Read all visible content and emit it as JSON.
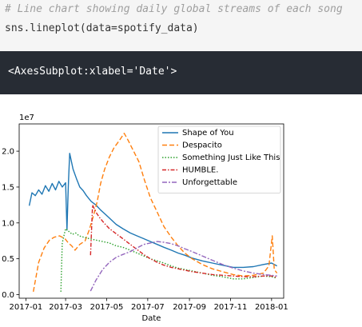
{
  "code_cell": {
    "comment": "# Line chart showing daily global streams of each song",
    "code": "sns.lineplot(data=spotify_data)"
  },
  "output_cell": {
    "text": "<AxesSubplot:xlabel='Date'>"
  },
  "colors": {
    "code_bg": "#f5f5f5",
    "output_bg": "#272c34"
  },
  "chart_data": {
    "type": "line",
    "xlabel": "Date",
    "ylabel": "",
    "offset_label": "1e7",
    "x_ticks": [
      "2017-01",
      "2017-03",
      "2017-05",
      "2017-07",
      "2017-09",
      "2017-11",
      "2018-01"
    ],
    "y_ticks": [
      "0.0",
      "0.5",
      "1.0",
      "1.5",
      "2.0"
    ],
    "ylim": [
      -0.05,
      2.38
    ],
    "xlim": [
      "2016-12-22",
      "2018-01-19"
    ],
    "legend_position": "upper right",
    "grid": false,
    "series": [
      {
        "name": "Shape of You",
        "color": "#1f77b4",
        "dash": "solid",
        "points": [
          [
            "2017-01-06",
            1.24
          ],
          [
            "2017-01-10",
            1.42
          ],
          [
            "2017-01-15",
            1.38
          ],
          [
            "2017-01-20",
            1.46
          ],
          [
            "2017-01-25",
            1.4
          ],
          [
            "2017-01-30",
            1.52
          ],
          [
            "2017-02-04",
            1.44
          ],
          [
            "2017-02-09",
            1.55
          ],
          [
            "2017-02-14",
            1.46
          ],
          [
            "2017-02-19",
            1.58
          ],
          [
            "2017-02-24",
            1.5
          ],
          [
            "2017-03-01",
            1.56
          ],
          [
            "2017-03-03",
            0.9
          ],
          [
            "2017-03-05",
            1.52
          ],
          [
            "2017-03-07",
            1.97
          ],
          [
            "2017-03-12",
            1.75
          ],
          [
            "2017-03-17",
            1.62
          ],
          [
            "2017-03-22",
            1.5
          ],
          [
            "2017-03-27",
            1.45
          ],
          [
            "2017-04-01",
            1.38
          ],
          [
            "2017-04-08",
            1.3
          ],
          [
            "2017-04-15",
            1.25
          ],
          [
            "2017-04-22",
            1.18
          ],
          [
            "2017-04-29",
            1.12
          ],
          [
            "2017-05-07",
            1.05
          ],
          [
            "2017-05-15",
            0.98
          ],
          [
            "2017-05-25",
            0.92
          ],
          [
            "2017-06-05",
            0.86
          ],
          [
            "2017-06-15",
            0.82
          ],
          [
            "2017-06-25",
            0.78
          ],
          [
            "2017-07-05",
            0.74
          ],
          [
            "2017-07-15",
            0.7
          ],
          [
            "2017-07-25",
            0.66
          ],
          [
            "2017-08-05",
            0.62
          ],
          [
            "2017-08-15",
            0.58
          ],
          [
            "2017-08-25",
            0.55
          ],
          [
            "2017-09-05",
            0.51
          ],
          [
            "2017-09-20",
            0.47
          ],
          [
            "2017-10-05",
            0.44
          ],
          [
            "2017-10-20",
            0.41
          ],
          [
            "2017-11-05",
            0.38
          ],
          [
            "2017-11-20",
            0.38
          ],
          [
            "2017-12-05",
            0.39
          ],
          [
            "2017-12-20",
            0.42
          ],
          [
            "2018-01-01",
            0.44
          ],
          [
            "2018-01-09",
            0.4
          ]
        ]
      },
      {
        "name": "Despacito",
        "color": "#ff7f0e",
        "dash": "6,3",
        "points": [
          [
            "2017-01-12",
            0.04
          ],
          [
            "2017-01-20",
            0.45
          ],
          [
            "2017-01-28",
            0.65
          ],
          [
            "2017-02-05",
            0.76
          ],
          [
            "2017-02-12",
            0.8
          ],
          [
            "2017-02-20",
            0.82
          ],
          [
            "2017-02-28",
            0.78
          ],
          [
            "2017-03-05",
            0.72
          ],
          [
            "2017-03-10",
            0.68
          ],
          [
            "2017-03-15",
            0.62
          ],
          [
            "2017-03-22",
            0.7
          ],
          [
            "2017-03-30",
            0.75
          ],
          [
            "2017-04-05",
            0.9
          ],
          [
            "2017-04-12",
            1.12
          ],
          [
            "2017-04-17",
            1.3
          ],
          [
            "2017-04-22",
            1.55
          ],
          [
            "2017-04-28",
            1.75
          ],
          [
            "2017-05-05",
            1.92
          ],
          [
            "2017-05-12",
            2.05
          ],
          [
            "2017-05-20",
            2.15
          ],
          [
            "2017-05-27",
            2.25
          ],
          [
            "2017-06-02",
            2.15
          ],
          [
            "2017-06-10",
            2.0
          ],
          [
            "2017-06-18",
            1.85
          ],
          [
            "2017-06-26",
            1.6
          ],
          [
            "2017-07-05",
            1.35
          ],
          [
            "2017-07-15",
            1.15
          ],
          [
            "2017-07-25",
            0.95
          ],
          [
            "2017-08-05",
            0.8
          ],
          [
            "2017-08-15",
            0.68
          ],
          [
            "2017-08-25",
            0.58
          ],
          [
            "2017-09-05",
            0.5
          ],
          [
            "2017-09-20",
            0.42
          ],
          [
            "2017-10-05",
            0.36
          ],
          [
            "2017-10-20",
            0.32
          ],
          [
            "2017-11-05",
            0.28
          ],
          [
            "2017-11-20",
            0.26
          ],
          [
            "2017-12-05",
            0.27
          ],
          [
            "2017-12-20",
            0.3
          ],
          [
            "2017-12-28",
            0.4
          ],
          [
            "2018-01-02",
            0.82
          ],
          [
            "2018-01-05",
            0.35
          ],
          [
            "2018-01-09",
            0.3
          ]
        ]
      },
      {
        "name": "Something Just Like This",
        "color": "#2ca02c",
        "dash": "1.5,2",
        "points": [
          [
            "2017-02-22",
            0.04
          ],
          [
            "2017-02-24",
            0.72
          ],
          [
            "2017-03-01",
            0.92
          ],
          [
            "2017-03-06",
            0.88
          ],
          [
            "2017-03-11",
            0.84
          ],
          [
            "2017-03-16",
            0.86
          ],
          [
            "2017-03-21",
            0.82
          ],
          [
            "2017-03-28",
            0.8
          ],
          [
            "2017-04-05",
            0.78
          ],
          [
            "2017-04-15",
            0.76
          ],
          [
            "2017-04-25",
            0.74
          ],
          [
            "2017-05-05",
            0.72
          ],
          [
            "2017-05-15",
            0.68
          ],
          [
            "2017-05-25",
            0.66
          ],
          [
            "2017-06-05",
            0.62
          ],
          [
            "2017-06-15",
            0.58
          ],
          [
            "2017-06-25",
            0.54
          ],
          [
            "2017-07-05",
            0.5
          ],
          [
            "2017-07-15",
            0.47
          ],
          [
            "2017-07-25",
            0.44
          ],
          [
            "2017-08-05",
            0.4
          ],
          [
            "2017-08-15",
            0.37
          ],
          [
            "2017-08-25",
            0.35
          ],
          [
            "2017-09-05",
            0.33
          ],
          [
            "2017-09-20",
            0.3
          ],
          [
            "2017-10-05",
            0.27
          ],
          [
            "2017-10-20",
            0.25
          ],
          [
            "2017-11-05",
            0.22
          ],
          [
            "2017-11-20",
            0.22
          ],
          [
            "2017-12-05",
            0.24
          ],
          [
            "2017-12-20",
            0.26
          ],
          [
            "2018-01-01",
            0.25
          ],
          [
            "2018-01-09",
            0.23
          ]
        ]
      },
      {
        "name": "HUMBLE.",
        "color": "#d62728",
        "dash": "5,2,1.5,2",
        "points": [
          [
            "2017-04-07",
            0.55
          ],
          [
            "2017-04-10",
            1.25
          ],
          [
            "2017-04-15",
            1.15
          ],
          [
            "2017-04-20",
            1.08
          ],
          [
            "2017-04-27",
            1.0
          ],
          [
            "2017-05-05",
            0.92
          ],
          [
            "2017-05-15",
            0.85
          ],
          [
            "2017-05-25",
            0.78
          ],
          [
            "2017-06-05",
            0.7
          ],
          [
            "2017-06-15",
            0.63
          ],
          [
            "2017-06-25",
            0.56
          ],
          [
            "2017-07-05",
            0.5
          ],
          [
            "2017-07-15",
            0.45
          ],
          [
            "2017-07-25",
            0.41
          ],
          [
            "2017-08-05",
            0.38
          ],
          [
            "2017-08-15",
            0.36
          ],
          [
            "2017-08-25",
            0.34
          ],
          [
            "2017-09-05",
            0.32
          ],
          [
            "2017-09-20",
            0.3
          ],
          [
            "2017-10-05",
            0.28
          ],
          [
            "2017-10-20",
            0.27
          ],
          [
            "2017-11-05",
            0.26
          ],
          [
            "2017-11-20",
            0.25
          ],
          [
            "2017-12-05",
            0.25
          ],
          [
            "2017-12-20",
            0.26
          ],
          [
            "2018-01-01",
            0.26
          ],
          [
            "2018-01-09",
            0.24
          ]
        ]
      },
      {
        "name": "Unforgettable",
        "color": "#9467bd",
        "dash": "6,2,2,2",
        "points": [
          [
            "2017-04-07",
            0.05
          ],
          [
            "2017-04-15",
            0.2
          ],
          [
            "2017-04-25",
            0.35
          ],
          [
            "2017-05-05",
            0.45
          ],
          [
            "2017-05-15",
            0.52
          ],
          [
            "2017-05-25",
            0.56
          ],
          [
            "2017-06-05",
            0.6
          ],
          [
            "2017-06-15",
            0.65
          ],
          [
            "2017-06-25",
            0.7
          ],
          [
            "2017-07-05",
            0.72
          ],
          [
            "2017-07-15",
            0.74
          ],
          [
            "2017-07-25",
            0.73
          ],
          [
            "2017-08-05",
            0.71
          ],
          [
            "2017-08-15",
            0.68
          ],
          [
            "2017-08-25",
            0.64
          ],
          [
            "2017-09-05",
            0.6
          ],
          [
            "2017-09-20",
            0.54
          ],
          [
            "2017-10-05",
            0.48
          ],
          [
            "2017-10-20",
            0.42
          ],
          [
            "2017-11-05",
            0.37
          ],
          [
            "2017-11-20",
            0.33
          ],
          [
            "2017-12-05",
            0.3
          ],
          [
            "2017-12-20",
            0.28
          ],
          [
            "2018-01-01",
            0.27
          ],
          [
            "2018-01-09",
            0.26
          ]
        ]
      }
    ]
  }
}
